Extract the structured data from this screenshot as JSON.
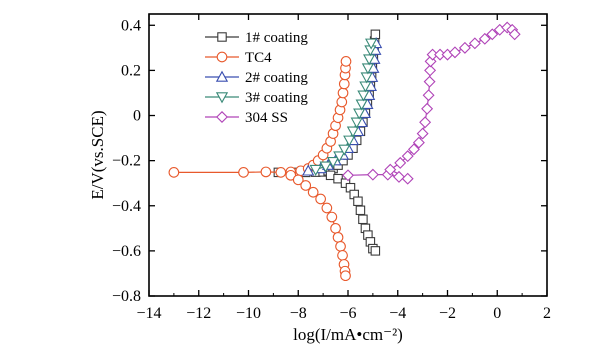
{
  "chart_data": {
    "type": "line",
    "title": "",
    "xlabel": "log(I/mA•cm⁻²)",
    "ylabel": "E/V(vs.SCE)",
    "xlim": [
      -14,
      2
    ],
    "ylim": [
      -0.8,
      0.45
    ],
    "xticks": [
      -14,
      -12,
      -10,
      -8,
      -6,
      -4,
      -2,
      0,
      2
    ],
    "yticks": [
      -0.8,
      -0.6,
      -0.4,
      -0.2,
      0,
      0.2,
      0.4
    ],
    "xtick_labels": [
      "−14",
      "−12",
      "−10",
      "−8",
      "−6",
      "−4",
      "−2",
      "0",
      "2"
    ],
    "ytick_labels": [
      "−0.8",
      "−0.6",
      "−0.4",
      "−0.2",
      "0",
      "0.2",
      "0.4"
    ],
    "grid": false,
    "legend_position": "top-left",
    "series": [
      {
        "name": "1# coating",
        "color": "#3a3a3a",
        "marker": "square",
        "points": [
          [
            -8.8,
            -0.252
          ],
          [
            -8.2,
            -0.252
          ],
          [
            -7.7,
            -0.252
          ],
          [
            -7.3,
            -0.251
          ],
          [
            -7.0,
            -0.25
          ],
          [
            -6.8,
            -0.245
          ],
          [
            -6.6,
            -0.235
          ],
          [
            -6.4,
            -0.22
          ],
          [
            -6.2,
            -0.2
          ],
          [
            -6.0,
            -0.175
          ],
          [
            -5.8,
            -0.145
          ],
          [
            -5.65,
            -0.11
          ],
          [
            -5.5,
            -0.07
          ],
          [
            -5.4,
            -0.03
          ],
          [
            -5.3,
            0.01
          ],
          [
            -5.22,
            0.05
          ],
          [
            -5.15,
            0.09
          ],
          [
            -5.1,
            0.13
          ],
          [
            -5.05,
            0.17
          ],
          [
            -5.02,
            0.21
          ],
          [
            -4.98,
            0.25
          ],
          [
            -4.95,
            0.29
          ],
          [
            -4.93,
            0.33
          ],
          [
            -4.9,
            0.36
          ],
          [
            -6.7,
            -0.265
          ],
          [
            -6.4,
            -0.28
          ],
          [
            -6.1,
            -0.3
          ],
          [
            -5.9,
            -0.32
          ],
          [
            -5.75,
            -0.35
          ],
          [
            -5.6,
            -0.38
          ],
          [
            -5.5,
            -0.42
          ],
          [
            -5.4,
            -0.46
          ],
          [
            -5.3,
            -0.5
          ],
          [
            -5.2,
            -0.53
          ],
          [
            -5.1,
            -0.56
          ],
          [
            -5.0,
            -0.59
          ],
          [
            -4.9,
            -0.6
          ]
        ]
      },
      {
        "name": "TC4",
        "color": "#e8592c",
        "marker": "circle",
        "points": [
          [
            -13.0,
            -0.252
          ],
          [
            -10.2,
            -0.252
          ],
          [
            -9.3,
            -0.25
          ],
          [
            -8.7,
            -0.252
          ],
          [
            -8.3,
            -0.25
          ],
          [
            -7.9,
            -0.245
          ],
          [
            -7.6,
            -0.235
          ],
          [
            -7.4,
            -0.22
          ],
          [
            -7.2,
            -0.2
          ],
          [
            -7.0,
            -0.175
          ],
          [
            -6.85,
            -0.145
          ],
          [
            -6.7,
            -0.115
          ],
          [
            -6.6,
            -0.08
          ],
          [
            -6.5,
            -0.045
          ],
          [
            -6.4,
            -0.01
          ],
          [
            -6.32,
            0.025
          ],
          [
            -6.25,
            0.06
          ],
          [
            -6.2,
            0.1
          ],
          [
            -6.15,
            0.14
          ],
          [
            -6.12,
            0.18
          ],
          [
            -6.1,
            0.21
          ],
          [
            -6.08,
            0.24
          ],
          [
            -8.3,
            -0.265
          ],
          [
            -8.0,
            -0.285
          ],
          [
            -7.7,
            -0.31
          ],
          [
            -7.4,
            -0.34
          ],
          [
            -7.1,
            -0.37
          ],
          [
            -6.85,
            -0.41
          ],
          [
            -6.65,
            -0.45
          ],
          [
            -6.5,
            -0.5
          ],
          [
            -6.4,
            -0.54
          ],
          [
            -6.3,
            -0.58
          ],
          [
            -6.22,
            -0.62
          ],
          [
            -6.16,
            -0.66
          ],
          [
            -6.12,
            -0.69
          ],
          [
            -6.1,
            -0.71
          ]
        ]
      },
      {
        "name": "2# coating",
        "color": "#3a4fb0",
        "marker": "triangle-up",
        "points": [
          [
            -7.6,
            -0.245
          ],
          [
            -7.1,
            -0.235
          ],
          [
            -6.8,
            -0.22
          ],
          [
            -6.5,
            -0.2
          ],
          [
            -6.2,
            -0.175
          ],
          [
            -6.0,
            -0.145
          ],
          [
            -5.8,
            -0.11
          ],
          [
            -5.6,
            -0.07
          ],
          [
            -5.45,
            -0.03
          ],
          [
            -5.32,
            0.01
          ],
          [
            -5.22,
            0.05
          ],
          [
            -5.15,
            0.09
          ],
          [
            -5.08,
            0.13
          ],
          [
            -5.03,
            0.17
          ],
          [
            -4.98,
            0.21
          ],
          [
            -4.94,
            0.25
          ],
          [
            -4.9,
            0.29
          ],
          [
            -4.87,
            0.32
          ]
        ]
      },
      {
        "name": "3# coating",
        "color": "#3a8a78",
        "marker": "triangle-down",
        "points": [
          [
            -7.3,
            -0.24
          ],
          [
            -6.9,
            -0.225
          ],
          [
            -6.6,
            -0.205
          ],
          [
            -6.35,
            -0.18
          ],
          [
            -6.15,
            -0.15
          ],
          [
            -5.95,
            -0.11
          ],
          [
            -5.8,
            -0.07
          ],
          [
            -5.65,
            -0.03
          ],
          [
            -5.55,
            0.01
          ],
          [
            -5.45,
            0.05
          ],
          [
            -5.38,
            0.09
          ],
          [
            -5.3,
            0.13
          ],
          [
            -5.25,
            0.17
          ],
          [
            -5.2,
            0.21
          ],
          [
            -5.15,
            0.25
          ],
          [
            -5.1,
            0.29
          ],
          [
            -5.07,
            0.32
          ]
        ]
      },
      {
        "name": "304 SS",
        "color": "#b044b8",
        "marker": "diamond",
        "points": [
          [
            -6.0,
            -0.265
          ],
          [
            -5.0,
            -0.262
          ],
          [
            -4.4,
            -0.262
          ],
          [
            -3.95,
            -0.272
          ],
          [
            -3.6,
            -0.28
          ],
          [
            -4.3,
            -0.24
          ],
          [
            -3.9,
            -0.21
          ],
          [
            -3.6,
            -0.18
          ],
          [
            -3.35,
            -0.15
          ],
          [
            -3.15,
            -0.12
          ],
          [
            -3.0,
            -0.08
          ],
          [
            -2.9,
            -0.03
          ],
          [
            -2.82,
            0.03
          ],
          [
            -2.76,
            0.09
          ],
          [
            -2.72,
            0.15
          ],
          [
            -2.7,
            0.2
          ],
          [
            -2.68,
            0.24
          ],
          [
            -2.6,
            0.27
          ],
          [
            -2.3,
            0.27
          ],
          [
            -2.0,
            0.27
          ],
          [
            -1.7,
            0.28
          ],
          [
            -1.3,
            0.3
          ],
          [
            -0.9,
            0.32
          ],
          [
            -0.5,
            0.34
          ],
          [
            -0.2,
            0.36
          ],
          [
            0.1,
            0.38
          ],
          [
            0.4,
            0.39
          ],
          [
            0.6,
            0.38
          ],
          [
            0.7,
            0.36
          ]
        ]
      }
    ]
  }
}
